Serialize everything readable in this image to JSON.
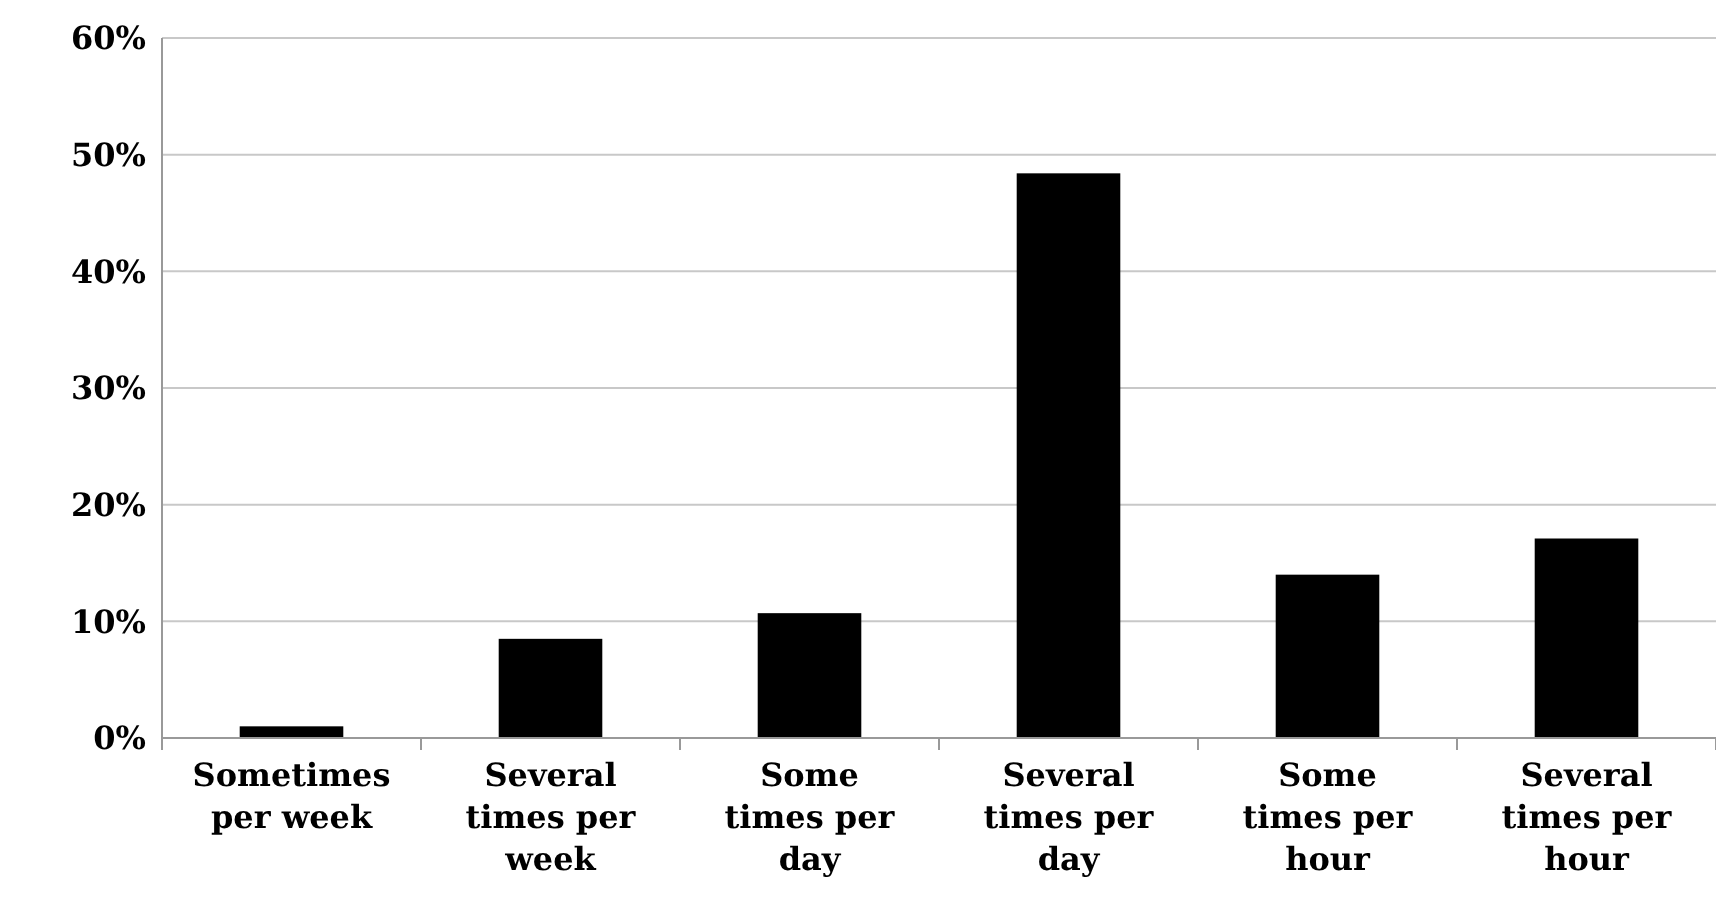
{
  "chart_data": {
    "type": "bar",
    "categories": [
      "Sometimes per week",
      "Several times per week",
      "Some times per day",
      "Several times per day",
      "Some times per hour",
      "Several times per hour"
    ],
    "values": [
      1.0,
      8.5,
      10.7,
      48.4,
      14.0,
      17.1
    ],
    "color": "#000000",
    "ylim": [
      0,
      60
    ],
    "yticks": [
      {
        "value": 0,
        "label": "0%"
      },
      {
        "value": 10,
        "label": "10%"
      },
      {
        "value": 20,
        "label": "20%"
      },
      {
        "value": 30,
        "label": "30%"
      },
      {
        "value": 40,
        "label": "40%"
      },
      {
        "value": 50,
        "label": "50%"
      },
      {
        "value": 60,
        "label": "60%"
      }
    ],
    "grid": "y"
  }
}
